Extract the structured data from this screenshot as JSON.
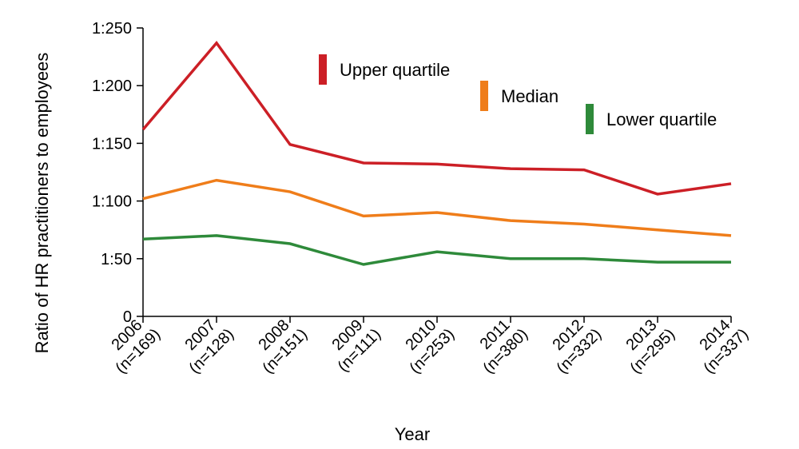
{
  "chart_data": {
    "type": "line",
    "categories": [
      "2006",
      "2007",
      "2008",
      "2009",
      "2010",
      "2011",
      "2012",
      "2013",
      "2014"
    ],
    "category_sublabels": [
      "(n=169)",
      "(n=128)",
      "(n=151)",
      "(n=111)",
      "(n=253)",
      "(n=380)",
      "(n=332)",
      "(n=295)",
      "(n=337)"
    ],
    "series": [
      {
        "name": "Upper quartile",
        "color": "#cc1f26",
        "values": [
          162,
          237,
          149,
          133,
          132,
          128,
          127,
          106,
          115
        ]
      },
      {
        "name": "Median",
        "color": "#ef7d1a",
        "values": [
          102,
          118,
          108,
          87,
          90,
          83,
          80,
          75,
          70
        ]
      },
      {
        "name": "Lower quartile",
        "color": "#2e8a3a",
        "values": [
          67,
          70,
          63,
          45,
          56,
          50,
          50,
          47,
          47
        ]
      }
    ],
    "xlabel": "Year",
    "ylabel": "Ratio of HR practitioners to employees",
    "ylim": [
      0,
      250
    ],
    "yticks": [
      0,
      50,
      100,
      150,
      200,
      250
    ],
    "ytick_labels": [
      "0",
      "1:50",
      "1:100",
      "1:150",
      "1:200",
      "1:250"
    ],
    "grid": false,
    "legend_position": "upper-center"
  }
}
